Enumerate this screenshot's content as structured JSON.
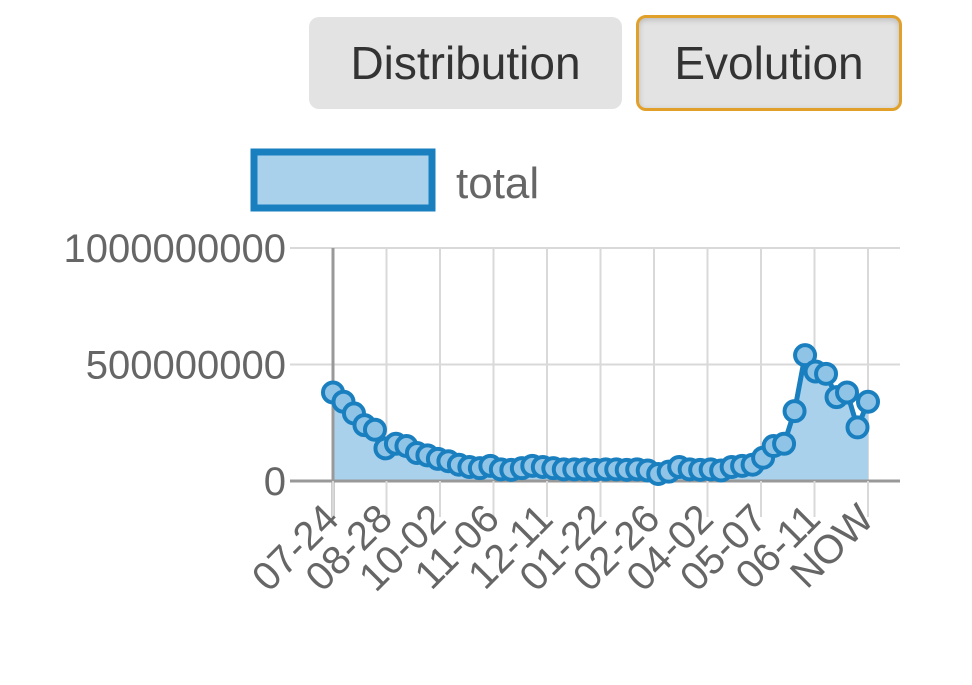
{
  "buttons": {
    "distribution_label": "Distribution",
    "evolution_label": "Evolution",
    "active": "Evolution"
  },
  "colors": {
    "line": "#1a7fbf",
    "fill": "#a9d1ec",
    "point_fill": "#8fc4e6",
    "grid": "#d9d9d9",
    "axis": "#999999",
    "active_border": "#e0a02a"
  },
  "chart_data": {
    "type": "area",
    "legend": {
      "label": "total",
      "position": "top"
    },
    "ylim": [
      0,
      1000000000
    ],
    "y_ticks": [
      "0",
      "500000000",
      "1000000000"
    ],
    "x_ticks": [
      "07-24",
      "08-28",
      "10-02",
      "11-06",
      "12-11",
      "01-22",
      "02-26",
      "04-02",
      "05-07",
      "06-11",
      "NOW"
    ],
    "grid": true,
    "series": [
      {
        "name": "total",
        "values": [
          380000000,
          340000000,
          290000000,
          240000000,
          220000000,
          140000000,
          160000000,
          150000000,
          120000000,
          110000000,
          95000000,
          85000000,
          70000000,
          60000000,
          55000000,
          65000000,
          50000000,
          48000000,
          55000000,
          65000000,
          60000000,
          55000000,
          50000000,
          50000000,
          50000000,
          48000000,
          50000000,
          50000000,
          48000000,
          50000000,
          45000000,
          30000000,
          40000000,
          60000000,
          50000000,
          48000000,
          50000000,
          45000000,
          60000000,
          65000000,
          70000000,
          100000000,
          150000000,
          160000000,
          300000000,
          540000000,
          470000000,
          460000000,
          360000000,
          380000000,
          230000000,
          340000000
        ]
      }
    ]
  }
}
